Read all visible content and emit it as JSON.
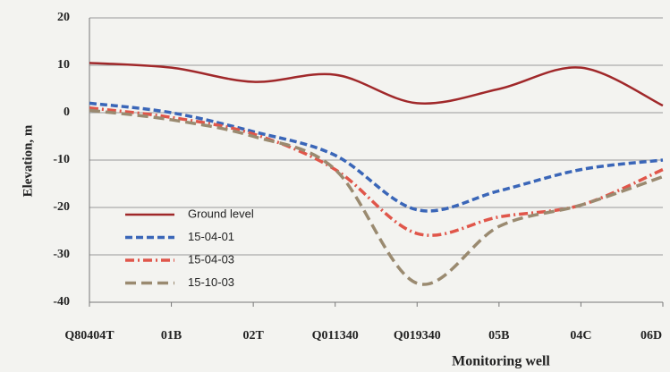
{
  "chart_data": {
    "type": "line",
    "x_label": "Monitoring well",
    "y_label": "Elevation, m",
    "categories": [
      "Q80404T",
      "01B",
      "02T",
      "Q011340",
      "Q019340",
      "05B",
      "04C",
      "06D"
    ],
    "series": [
      {
        "name": "Ground level",
        "color": "#a0282a",
        "dash": "solid",
        "values": [
          10.5,
          9.5,
          6.5,
          8,
          2,
          5,
          9.5,
          1.5
        ]
      },
      {
        "name": "15-04-01",
        "color": "#3a66b8",
        "dash": "dash",
        "values": [
          2,
          0,
          -4,
          -9,
          -20.5,
          -16.5,
          -12,
          -10
        ]
      },
      {
        "name": "15-04-03",
        "color": "#e0564a",
        "dash": "dashdot",
        "values": [
          1,
          -1,
          -4.5,
          -12,
          -25.5,
          -22,
          -19.5,
          -12
        ]
      },
      {
        "name": "15-10-03",
        "color": "#9a8a70",
        "dash": "longdash",
        "values": [
          0.5,
          -1.5,
          -5,
          -12,
          -36,
          -24,
          -19.5,
          -13.5
        ]
      }
    ],
    "ylim": [
      -40,
      20
    ],
    "yticks": [
      -40,
      -30,
      -20,
      -10,
      0,
      10,
      20
    ],
    "grid": true,
    "legend": "lower left"
  }
}
